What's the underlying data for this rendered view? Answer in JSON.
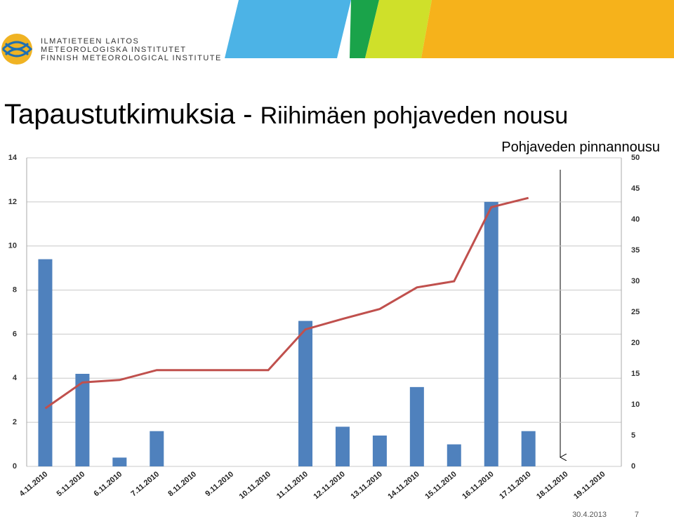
{
  "header": {
    "logo_lines": [
      "ILMATIETEEN LAITOS",
      "METEOROLOGISKA INSTITUTET",
      "FINNISH METEOROLOGICAL INSTITUTE"
    ]
  },
  "slide": {
    "title_bold": "Tapaustutkimuksia -",
    "title_rest": "Riihimäen pohjaveden nousu",
    "date": "30.4.2013",
    "page": "7"
  },
  "chart_data": {
    "type": "bar",
    "annotation": "Pohjaveden pinnannousu",
    "categories": [
      "4.11.2010",
      "5.11.2010",
      "6.11.2010",
      "7.11.2010",
      "8.11.2010",
      "9.11.2010",
      "10.11.2010",
      "11.11.2010",
      "12.11.2010",
      "13.11.2010",
      "14.11.2010",
      "15.11.2010",
      "16.11.2010",
      "17.11.2010",
      "18.11.2010",
      "19.11.2010"
    ],
    "series": [
      {
        "type": "bar",
        "color": "#4f81bd",
        "values": [
          9.4,
          4.2,
          0.4,
          1.6,
          0,
          0,
          0,
          6.6,
          1.8,
          1.4,
          3.6,
          1.0,
          12,
          1.6,
          null,
          null
        ]
      },
      {
        "type": "line",
        "axis": "y2",
        "color": "#c0504d",
        "values": [
          9.4,
          13.6,
          14.0,
          15.6,
          15.6,
          15.6,
          15.6,
          22.2,
          23.9,
          25.5,
          29.0,
          30.0,
          42.0,
          43.5,
          null,
          null
        ]
      }
    ],
    "ylim": [
      0,
      14
    ],
    "yticks": [
      0,
      2,
      4,
      6,
      8,
      10,
      12,
      14
    ],
    "y2lim": [
      0,
      50
    ],
    "y2ticks": [
      0,
      5,
      10,
      15,
      20,
      25,
      30,
      35,
      40,
      45,
      50
    ],
    "grid": true
  }
}
